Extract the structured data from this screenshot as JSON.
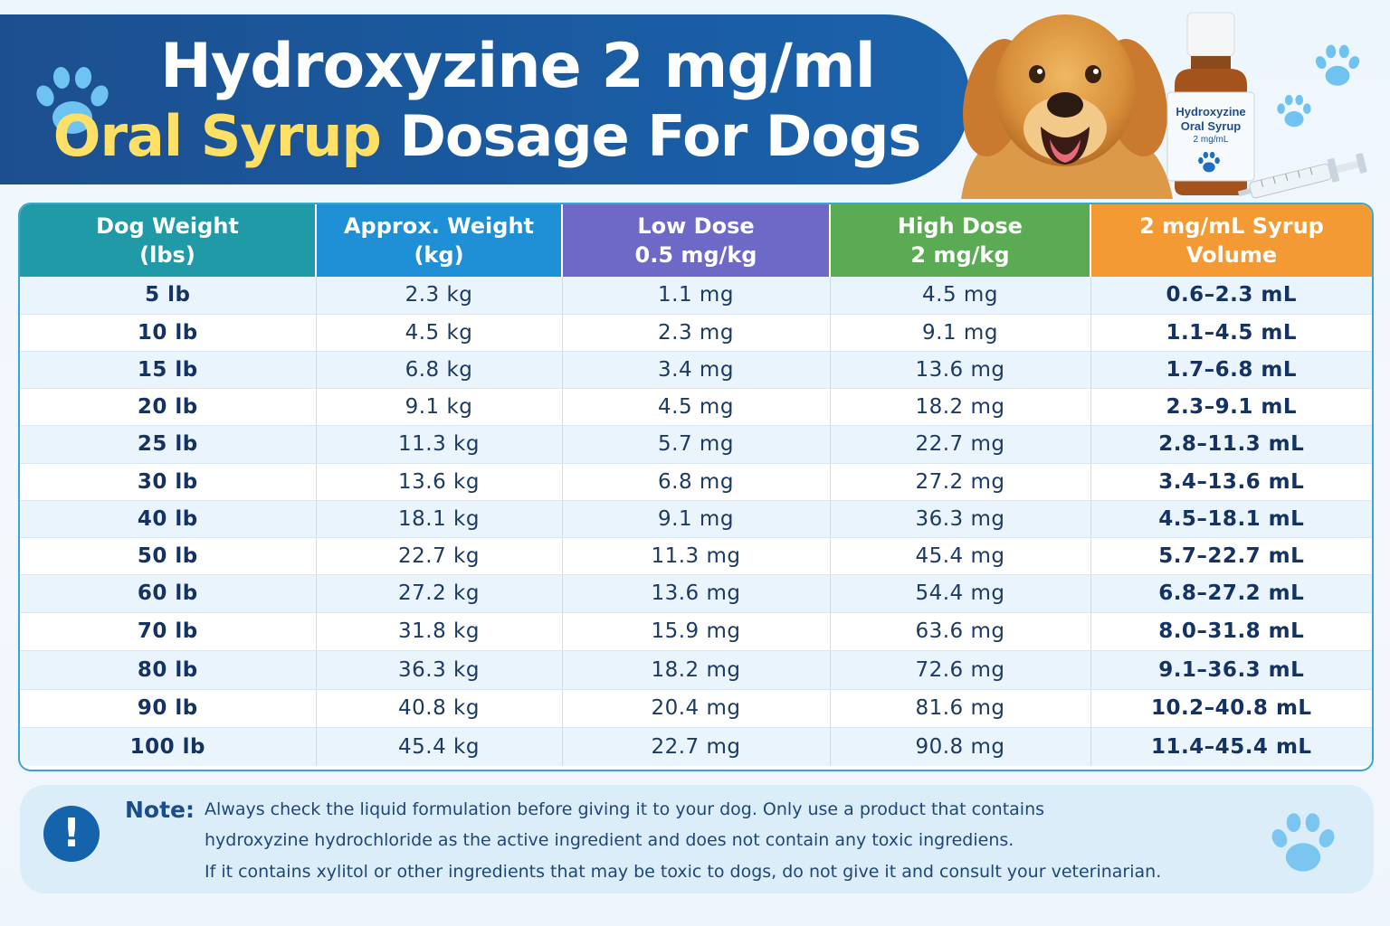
{
  "title": {
    "line1": "Hydroxyzine 2 mg/ml",
    "line2_highlight": "Oral Syrup",
    "line2_rest": "Dosage For Dogs"
  },
  "bottle_label": {
    "line1": "Hydroxyzine",
    "line2": "Oral Syrup",
    "line3": "2 mg/mL"
  },
  "table": {
    "headers": [
      {
        "line1": "Dog Weight",
        "line2": "(lbs)",
        "color": "#1f9aa6"
      },
      {
        "line1": "Approx. Weight",
        "line2": "(kg)",
        "color": "#1f8fd6"
      },
      {
        "line1": "Low Dose",
        "line2": "0.5 mg/kg",
        "color": "#6e68c7"
      },
      {
        "line1": "High Dose",
        "line2": "2 mg/kg",
        "color": "#5aab54"
      },
      {
        "line1": "2 mg/mL Syrup Volume",
        "line2": "",
        "color": "#f39a35"
      }
    ],
    "rows": [
      [
        "5 lb",
        "2.3 kg",
        "1.1 mg",
        "4.5 mg",
        "0.6–2.3 mL"
      ],
      [
        "10 lb",
        "4.5 kg",
        "2.3 mg",
        "9.1 mg",
        "1.1–4.5 mL"
      ],
      [
        "15 lb",
        "6.8 kg",
        "3.4 mg",
        "13.6 mg",
        "1.7–6.8 mL"
      ],
      [
        "20 lb",
        "9.1 kg",
        "4.5 mg",
        "18.2 mg",
        "2.3–9.1 mL"
      ],
      [
        "25 lb",
        "11.3 kg",
        "5.7 mg",
        "22.7 mg",
        "2.8–11.3 mL"
      ],
      [
        "30 lb",
        "13.6 kg",
        "6.8 mg",
        "27.2 mg",
        "3.4–13.6 mL"
      ],
      [
        "40 lb",
        "18.1 kg",
        "9.1 mg",
        "36.3 mg",
        "4.5–18.1 mL"
      ],
      [
        "50 lb",
        "22.7 kg",
        "11.3 mg",
        "45.4 mg",
        "5.7–22.7 mL"
      ],
      [
        "60 lb",
        "27.2 kg",
        "13.6 mg",
        "54.4 mg",
        "6.8–27.2 mL"
      ],
      [
        "70 lb",
        "31.8 kg",
        "15.9 mg",
        "63.6 mg",
        "8.0–31.8 mL"
      ],
      [
        "80 lb",
        "36.3 kg",
        "18.2 mg",
        "72.6 mg",
        "9.1–36.3 mL"
      ],
      [
        "90 lb",
        "40.8 kg",
        "20.4 mg",
        "81.6 mg",
        "10.2–40.8 mL"
      ],
      [
        "100 lb",
        "45.4 kg",
        "22.7 mg",
        "90.8 mg",
        "11.4–45.4 mL"
      ]
    ]
  },
  "note": {
    "icon": "exclamation-icon",
    "label": "Note:",
    "lines": [
      "Always check the liquid formulation before giving it to your dog. Only use a product that contains",
      "hydroxyzine hydrochloride as the active ingredient and does not contain any toxic ingrediens.",
      "If it contains xylitol or other ingredients that may be toxic to dogs, do not give it and consult your veterinarian."
    ]
  },
  "colors": {
    "banner": "#1c4f8f",
    "title_highlight": "#ffe066",
    "paw": "#6fbfee"
  }
}
